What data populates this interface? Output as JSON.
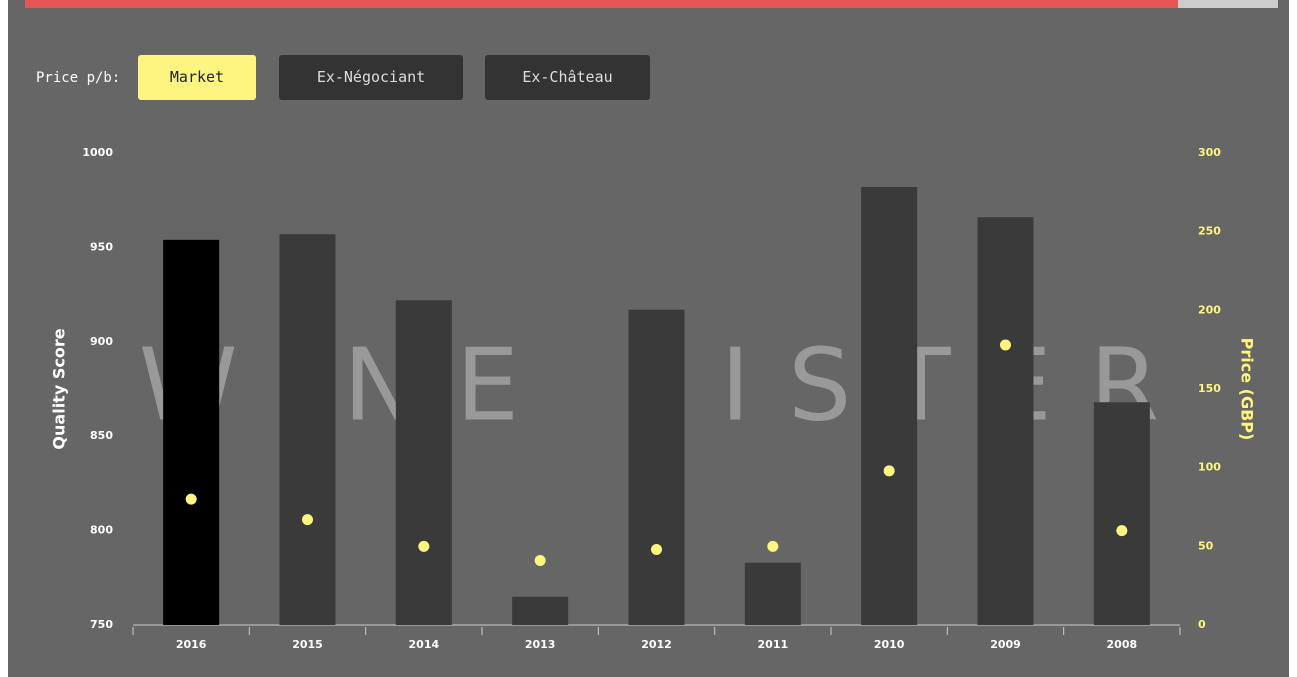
{
  "controls": {
    "label": "Price p/b:",
    "buttons": [
      "Market",
      "Ex-Négociant",
      "Ex-Château"
    ],
    "active": 0
  },
  "watermark": "WINE LISTER",
  "chart_data": {
    "type": "bar",
    "categories": [
      "2016",
      "2015",
      "2014",
      "2013",
      "2012",
      "2011",
      "2010",
      "2009",
      "2008"
    ],
    "y_label": "Quality Score",
    "y2_label": "Price (GBP)",
    "ylim": [
      750,
      1000
    ],
    "yticks": [
      750,
      800,
      850,
      900,
      950,
      1000
    ],
    "y2lim": [
      0,
      300
    ],
    "y2ticks": [
      0,
      50,
      100,
      150,
      200,
      250,
      300
    ],
    "highlight_index": 0,
    "highlight_color": "#000000",
    "series": [
      {
        "type": "bar",
        "color": "#3a3a3a",
        "values": [
          954,
          957,
          922,
          765,
          917,
          783,
          982,
          966,
          868
        ]
      },
      {
        "type": "scatter",
        "axis": "y2",
        "color": "#fdf57f",
        "values": [
          80,
          67,
          50,
          41,
          48,
          50,
          98,
          178,
          60
        ]
      }
    ]
  }
}
